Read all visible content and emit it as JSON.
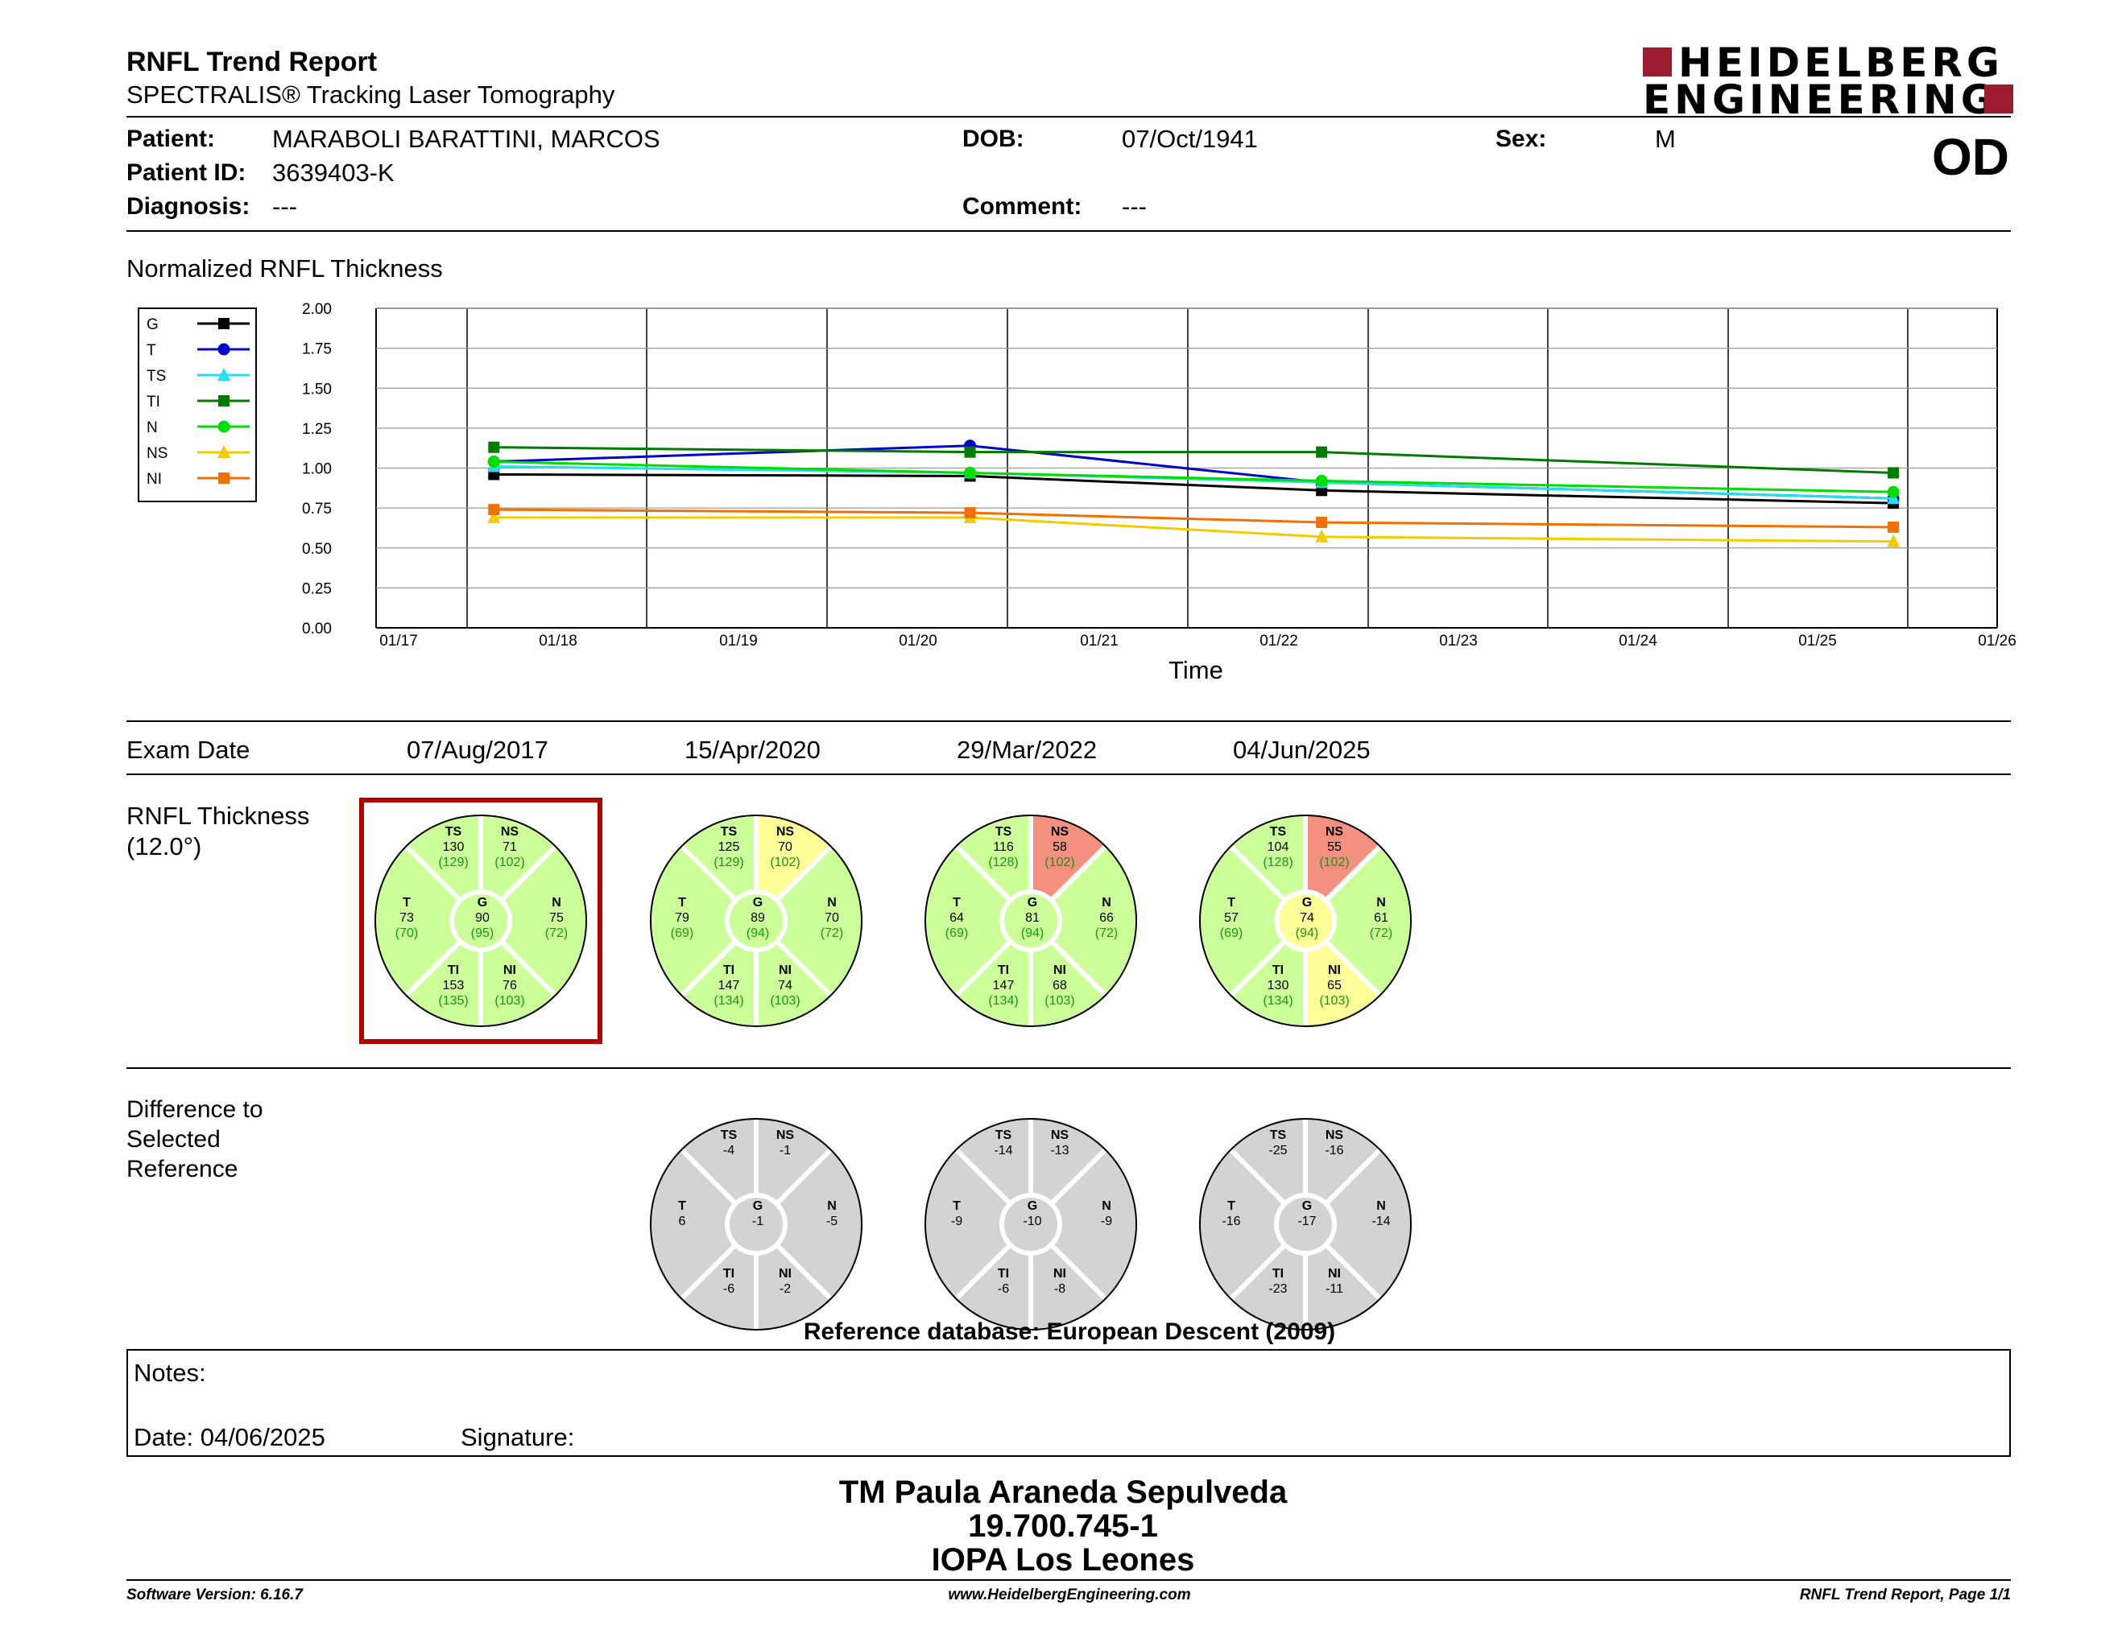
{
  "header": {
    "title": "RNFL Trend Report",
    "subtitle": "SPECTRALIS® Tracking Laser Tomography",
    "logo_line1": "HEIDELBERG",
    "logo_line2": "ENGINEERING",
    "logo_color": "#9b1b30"
  },
  "patient": {
    "patient_label": "Patient:",
    "patient_value": "MARABOLI  BARATTINI, MARCOS",
    "id_label": "Patient ID:",
    "id_value": "3639403-K",
    "diagnosis_label": "Diagnosis:",
    "diagnosis_value": "---",
    "dob_label": "DOB:",
    "dob_value": "07/Oct/1941",
    "comment_label": "Comment:",
    "comment_value": "---",
    "sex_label": "Sex:",
    "sex_value": "M",
    "eye": "OD"
  },
  "chart_section_title": "Normalized RNFL Thickness",
  "chart_data": {
    "type": "line",
    "xlabel": "Time",
    "ylabel": "",
    "ylim": [
      0,
      2
    ],
    "yticks": [
      "0.00",
      "0.25",
      "0.50",
      "0.75",
      "1.00",
      "1.25",
      "1.50",
      "1.75",
      "2.00"
    ],
    "xticks": [
      "01/17",
      "01/18",
      "01/19",
      "01/20",
      "01/21",
      "01/22",
      "01/23",
      "01/24",
      "01/25",
      "01/26"
    ],
    "x": [
      "07/Aug/2017",
      "15/Apr/2020",
      "29/Mar/2022",
      "04/Jun/2025"
    ],
    "grid": true,
    "legend_position": "left",
    "series": [
      {
        "name": "G",
        "color": "#000000",
        "marker": "square",
        "values": [
          0.96,
          0.95,
          0.86,
          0.78
        ]
      },
      {
        "name": "T",
        "color": "#0000cc",
        "marker": "circle",
        "values": [
          1.04,
          1.14,
          0.91,
          0.81
        ]
      },
      {
        "name": "TS",
        "color": "#22e0ee",
        "marker": "triangle",
        "values": [
          1.01,
          0.97,
          0.91,
          0.81
        ]
      },
      {
        "name": "TI",
        "color": "#007a00",
        "marker": "square",
        "values": [
          1.13,
          1.1,
          1.1,
          0.97
        ]
      },
      {
        "name": "N",
        "color": "#00dd00",
        "marker": "circle",
        "values": [
          1.04,
          0.97,
          0.92,
          0.85
        ]
      },
      {
        "name": "NS",
        "color": "#f0cc00",
        "marker": "triangle",
        "values": [
          0.69,
          0.69,
          0.57,
          0.54
        ]
      },
      {
        "name": "NI",
        "color": "#f07000",
        "marker": "square",
        "values": [
          0.74,
          0.72,
          0.66,
          0.63
        ]
      }
    ]
  },
  "exam_dates_label": "Exam Date",
  "exam_dates": [
    "07/Aug/2017",
    "15/Apr/2020",
    "29/Mar/2022",
    "04/Jun/2025"
  ],
  "rnfl_label_1": "RNFL Thickness",
  "rnfl_label_2": "(12.0°)",
  "colors": {
    "normal": "#ccff99",
    "borderline": "#ffff99",
    "outside": "#f49080",
    "diff": "#d3d3d3",
    "selected_border": "#b00000",
    "ref_text": "#119911"
  },
  "thickness": [
    {
      "selected": true,
      "TS": {
        "v": "130",
        "r": "(129)",
        "s": "normal"
      },
      "NS": {
        "v": "71",
        "r": "(102)",
        "s": "normal"
      },
      "T": {
        "v": "73",
        "r": "(70)",
        "s": "normal"
      },
      "G": {
        "v": "90",
        "r": "(95)",
        "s": "normal"
      },
      "N": {
        "v": "75",
        "r": "(72)",
        "s": "normal"
      },
      "TI": {
        "v": "153",
        "r": "(135)",
        "s": "normal"
      },
      "NI": {
        "v": "76",
        "r": "(103)",
        "s": "normal"
      }
    },
    {
      "selected": false,
      "TS": {
        "v": "125",
        "r": "(129)",
        "s": "normal"
      },
      "NS": {
        "v": "70",
        "r": "(102)",
        "s": "borderline"
      },
      "T": {
        "v": "79",
        "r": "(69)",
        "s": "normal"
      },
      "G": {
        "v": "89",
        "r": "(94)",
        "s": "normal"
      },
      "N": {
        "v": "70",
        "r": "(72)",
        "s": "normal"
      },
      "TI": {
        "v": "147",
        "r": "(134)",
        "s": "normal"
      },
      "NI": {
        "v": "74",
        "r": "(103)",
        "s": "normal"
      }
    },
    {
      "selected": false,
      "TS": {
        "v": "116",
        "r": "(128)",
        "s": "normal"
      },
      "NS": {
        "v": "58",
        "r": "(102)",
        "s": "outside"
      },
      "T": {
        "v": "64",
        "r": "(69)",
        "s": "normal"
      },
      "G": {
        "v": "81",
        "r": "(94)",
        "s": "normal"
      },
      "N": {
        "v": "66",
        "r": "(72)",
        "s": "normal"
      },
      "TI": {
        "v": "147",
        "r": "(134)",
        "s": "normal"
      },
      "NI": {
        "v": "68",
        "r": "(103)",
        "s": "normal"
      }
    },
    {
      "selected": false,
      "TS": {
        "v": "104",
        "r": "(128)",
        "s": "normal"
      },
      "NS": {
        "v": "55",
        "r": "(102)",
        "s": "outside"
      },
      "T": {
        "v": "57",
        "r": "(69)",
        "s": "normal"
      },
      "G": {
        "v": "74",
        "r": "(94)",
        "s": "borderline"
      },
      "N": {
        "v": "61",
        "r": "(72)",
        "s": "normal"
      },
      "TI": {
        "v": "130",
        "r": "(134)",
        "s": "normal"
      },
      "NI": {
        "v": "65",
        "r": "(103)",
        "s": "borderline"
      }
    }
  ],
  "diff_label_1": "Difference to",
  "diff_label_2": "Selected",
  "diff_label_3": "Reference",
  "differences": [
    {
      "TS": "-4",
      "NS": "-1",
      "T": "6",
      "G": "-1",
      "N": "-5",
      "TI": "-6",
      "NI": "-2"
    },
    {
      "TS": "-14",
      "NS": "-13",
      "T": "-9",
      "G": "-10",
      "N": "-9",
      "TI": "-6",
      "NI": "-8"
    },
    {
      "TS": "-25",
      "NS": "-16",
      "T": "-16",
      "G": "-17",
      "N": "-14",
      "TI": "-23",
      "NI": "-11"
    }
  ],
  "reference_db": "Reference database: European Descent (2009)",
  "notes": {
    "notes_label": "Notes:",
    "date_label": "Date: 04/06/2025",
    "signature_label": "Signature:"
  },
  "operator": {
    "name": "TM Paula Araneda Sepulveda",
    "id": "19.700.745-1",
    "clinic": "IOPA Los Leones"
  },
  "footer": {
    "software": "Software Version: 6.16.7",
    "website": "www.HeidelbergEngineering.com",
    "page": "RNFL Trend Report, Page 1/1"
  }
}
